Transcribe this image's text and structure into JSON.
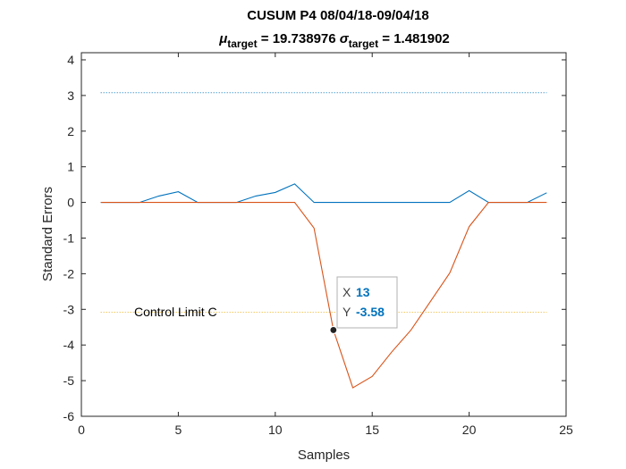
{
  "chart_data": {
    "type": "line",
    "title_main": "CUSUM P4 08/04/18-09/04/18",
    "title_mu_symbol": "μ",
    "title_sub": "target",
    "title_mu_value": " = 19.738976 ",
    "title_sigma_symbol": "σ",
    "title_sigma_value": " = 1.481902",
    "xlabel": "Samples",
    "ylabel": "Standard Errors",
    "xlim": [
      0,
      25
    ],
    "ylim": [
      -6,
      4.2
    ],
    "xticks": [
      0,
      5,
      10,
      15,
      20,
      25
    ],
    "yticks": [
      -6,
      -5,
      -4,
      -3,
      -2,
      -1,
      0,
      1,
      2,
      3,
      4
    ],
    "grid": false,
    "series": [
      {
        "color": "#0072BD",
        "x": [
          1,
          2,
          3,
          4,
          5,
          6,
          7,
          8,
          9,
          10,
          11,
          12,
          13,
          14,
          15,
          16,
          17,
          18,
          19,
          20,
          21,
          22,
          23,
          24
        ],
        "y": [
          0,
          0,
          0,
          0.18,
          0.3,
          0,
          0,
          0,
          0.18,
          0.28,
          0.52,
          0,
          0,
          0,
          0,
          0,
          0,
          0,
          0,
          0.33,
          0,
          0,
          0,
          0.27
        ]
      },
      {
        "color": "#D95319",
        "x": [
          1,
          2,
          3,
          4,
          5,
          6,
          7,
          8,
          9,
          10,
          11,
          12,
          13,
          14,
          15,
          16,
          17,
          18,
          19,
          20,
          21,
          22,
          23,
          24
        ],
        "y": [
          0,
          0,
          0,
          0,
          0,
          0,
          0,
          0,
          0,
          0,
          0,
          -0.72,
          -3.58,
          -5.2,
          -4.88,
          -4.2,
          -3.58,
          -2.78,
          -1.98,
          -0.68,
          0,
          0,
          0,
          0
        ]
      }
    ],
    "limits": [
      {
        "y": 3.08,
        "x_range": [
          1,
          24
        ],
        "color": "#0072BD",
        "style": "dotted"
      },
      {
        "y": -3.08,
        "x_range": [
          1,
          24
        ],
        "color": "#EDB120",
        "style": "dotted"
      }
    ],
    "annotation": {
      "text": "Control Limit C",
      "x": 2.8,
      "y": -3.08
    },
    "datatip": {
      "x_key": "X",
      "x_value": "13",
      "y_key": "Y",
      "y_value": "-3.58",
      "point": {
        "x": 13,
        "y": -3.58
      }
    }
  }
}
